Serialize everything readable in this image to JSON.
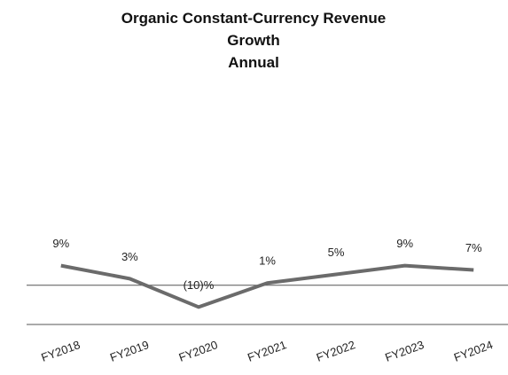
{
  "chart_data": {
    "type": "line",
    "title": "Organic Constant-Currency Revenue Growth",
    "subtitle": "Annual",
    "categories": [
      "FY2018",
      "FY2019",
      "FY2020",
      "FY2021",
      "FY2022",
      "FY2023",
      "FY2024"
    ],
    "series": [
      {
        "name": "Organic Constant-Currency Revenue Growth",
        "color": "#6b6b6b",
        "values": [
          9,
          3,
          -10,
          1,
          5,
          9,
          7
        ],
        "value_labels": [
          "9%",
          "3%",
          "(10)%",
          "1%",
          "5%",
          "9%",
          "7%"
        ]
      }
    ],
    "ylim": [
      -18,
      30
    ]
  }
}
